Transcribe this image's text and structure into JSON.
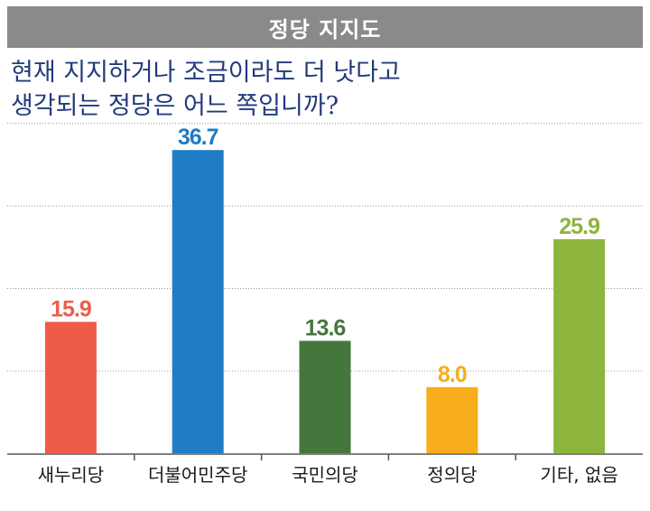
{
  "header": {
    "title": "정당 지지도"
  },
  "question": {
    "line1": "현재 지지하거나 조금이라도 더 낫다고",
    "line2": "생각되는 정당은 어느 쪽입니까?"
  },
  "colors": {
    "header_bg": "#8a8a8a",
    "question_text": "#233b7c",
    "gridline": "#9a9a9a"
  },
  "chart_data": {
    "type": "bar",
    "title": "정당 지지도",
    "categories": [
      "새누리당",
      "더불어민주당",
      "국민의당",
      "정의당",
      "기타, 없음"
    ],
    "values": [
      15.9,
      36.7,
      13.6,
      8.0,
      25.9
    ],
    "value_labels": [
      "15.9",
      "36.7",
      "13.6",
      "8.0",
      "25.9"
    ],
    "colors": [
      "#ee5c49",
      "#1f7cc5",
      "#45773d",
      "#f7ad1c",
      "#8db43c"
    ],
    "ylim": [
      0,
      40
    ],
    "grid": true,
    "xlabel": "",
    "ylabel": ""
  }
}
